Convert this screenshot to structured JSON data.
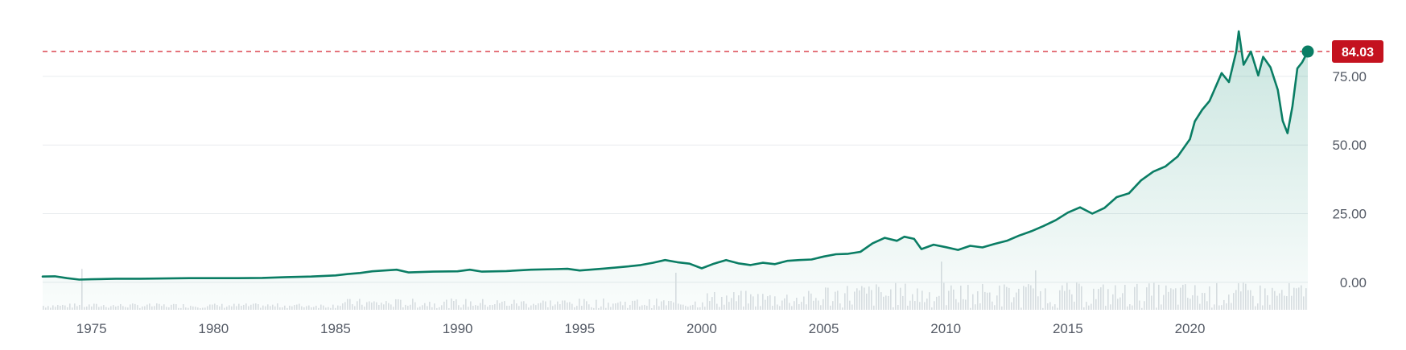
{
  "chart_data": {
    "type": "area",
    "x_label": "",
    "y_label": "",
    "title": "",
    "y_range": [
      -10,
      94
    ],
    "x_range": [
      1973.0,
      2024.83
    ],
    "y_ticks": [
      {
        "value": 75,
        "label": "75.00"
      },
      {
        "value": 50,
        "label": "50.00"
      },
      {
        "value": 25,
        "label": "25.00"
      },
      {
        "value": 0,
        "label": "0.00"
      }
    ],
    "x_ticks": [
      {
        "value": 1975,
        "label": "1975"
      },
      {
        "value": 1980,
        "label": "1980"
      },
      {
        "value": 1985,
        "label": "1985"
      },
      {
        "value": 1990,
        "label": "1990"
      },
      {
        "value": 1995,
        "label": "1995"
      },
      {
        "value": 2000,
        "label": "2000"
      },
      {
        "value": 2005,
        "label": "2005"
      },
      {
        "value": 2010,
        "label": "2010"
      },
      {
        "value": 2015,
        "label": "2015"
      },
      {
        "value": 2020,
        "label": "2020"
      }
    ],
    "grid": true,
    "current_price": {
      "value": 84.03,
      "label": "84.03"
    },
    "series": [
      {
        "type": "line",
        "points": [
          [
            1973.0,
            2.1
          ],
          [
            1973.5,
            2.2
          ],
          [
            1974.0,
            1.5
          ],
          [
            1974.5,
            1.0
          ],
          [
            1975.0,
            1.1
          ],
          [
            1976.0,
            1.3
          ],
          [
            1977.0,
            1.3
          ],
          [
            1978.0,
            1.4
          ],
          [
            1979.0,
            1.5
          ],
          [
            1980.0,
            1.5
          ],
          [
            1981.0,
            1.5
          ],
          [
            1982.0,
            1.6
          ],
          [
            1983.0,
            1.9
          ],
          [
            1984.0,
            2.1
          ],
          [
            1985.0,
            2.5
          ],
          [
            1985.5,
            3.0
          ],
          [
            1986.0,
            3.4
          ],
          [
            1986.5,
            4.0
          ],
          [
            1987.0,
            4.3
          ],
          [
            1987.5,
            4.6
          ],
          [
            1988.0,
            3.6
          ],
          [
            1989.0,
            3.9
          ],
          [
            1990.0,
            4.0
          ],
          [
            1990.5,
            4.6
          ],
          [
            1991.0,
            3.9
          ],
          [
            1992.0,
            4.1
          ],
          [
            1993.0,
            4.6
          ],
          [
            1994.0,
            4.8
          ],
          [
            1994.5,
            4.9
          ],
          [
            1995.0,
            4.3
          ],
          [
            1996.0,
            5.0
          ],
          [
            1997.0,
            5.8
          ],
          [
            1997.5,
            6.3
          ],
          [
            1998.0,
            7.1
          ],
          [
            1998.5,
            8.1
          ],
          [
            1999.0,
            7.3
          ],
          [
            1999.5,
            6.8
          ],
          [
            2000.0,
            5.1
          ],
          [
            2000.5,
            6.8
          ],
          [
            2001.0,
            8.1
          ],
          [
            2001.5,
            6.9
          ],
          [
            2002.0,
            6.3
          ],
          [
            2002.5,
            7.1
          ],
          [
            2003.0,
            6.6
          ],
          [
            2003.5,
            7.8
          ],
          [
            2004.0,
            8.1
          ],
          [
            2004.5,
            8.3
          ],
          [
            2005.0,
            9.4
          ],
          [
            2005.5,
            10.2
          ],
          [
            2006.0,
            10.4
          ],
          [
            2006.5,
            11.1
          ],
          [
            2007.0,
            14.2
          ],
          [
            2007.5,
            16.2
          ],
          [
            2008.0,
            15.1
          ],
          [
            2008.3,
            16.6
          ],
          [
            2008.7,
            15.8
          ],
          [
            2009.0,
            12.1
          ],
          [
            2009.5,
            13.7
          ],
          [
            2010.0,
            12.8
          ],
          [
            2010.5,
            11.8
          ],
          [
            2011.0,
            13.3
          ],
          [
            2011.5,
            12.7
          ],
          [
            2012.0,
            14.0
          ],
          [
            2012.5,
            15.1
          ],
          [
            2013.0,
            17.0
          ],
          [
            2013.5,
            18.6
          ],
          [
            2014.0,
            20.5
          ],
          [
            2014.5,
            22.6
          ],
          [
            2015.0,
            25.4
          ],
          [
            2015.5,
            27.3
          ],
          [
            2016.0,
            25.0
          ],
          [
            2016.5,
            27.1
          ],
          [
            2017.0,
            31.0
          ],
          [
            2017.5,
            32.4
          ],
          [
            2018.0,
            37.1
          ],
          [
            2018.5,
            40.3
          ],
          [
            2019.0,
            42.2
          ],
          [
            2019.5,
            45.8
          ],
          [
            2020.0,
            52.1
          ],
          [
            2020.2,
            58.6
          ],
          [
            2020.5,
            62.8
          ],
          [
            2020.8,
            66.0
          ],
          [
            2021.0,
            70.0
          ],
          [
            2021.3,
            76.2
          ],
          [
            2021.6,
            72.9
          ],
          [
            2021.9,
            84.1
          ],
          [
            2022.0,
            91.4
          ],
          [
            2022.2,
            79.2
          ],
          [
            2022.5,
            84.0
          ],
          [
            2022.8,
            75.3
          ],
          [
            2023.0,
            82.1
          ],
          [
            2023.3,
            78.3
          ],
          [
            2023.6,
            70.1
          ],
          [
            2023.8,
            58.8
          ],
          [
            2024.0,
            54.3
          ],
          [
            2024.2,
            64.1
          ],
          [
            2024.4,
            77.9
          ],
          [
            2024.6,
            80.1
          ],
          [
            2024.83,
            84.03
          ]
        ]
      }
    ]
  }
}
